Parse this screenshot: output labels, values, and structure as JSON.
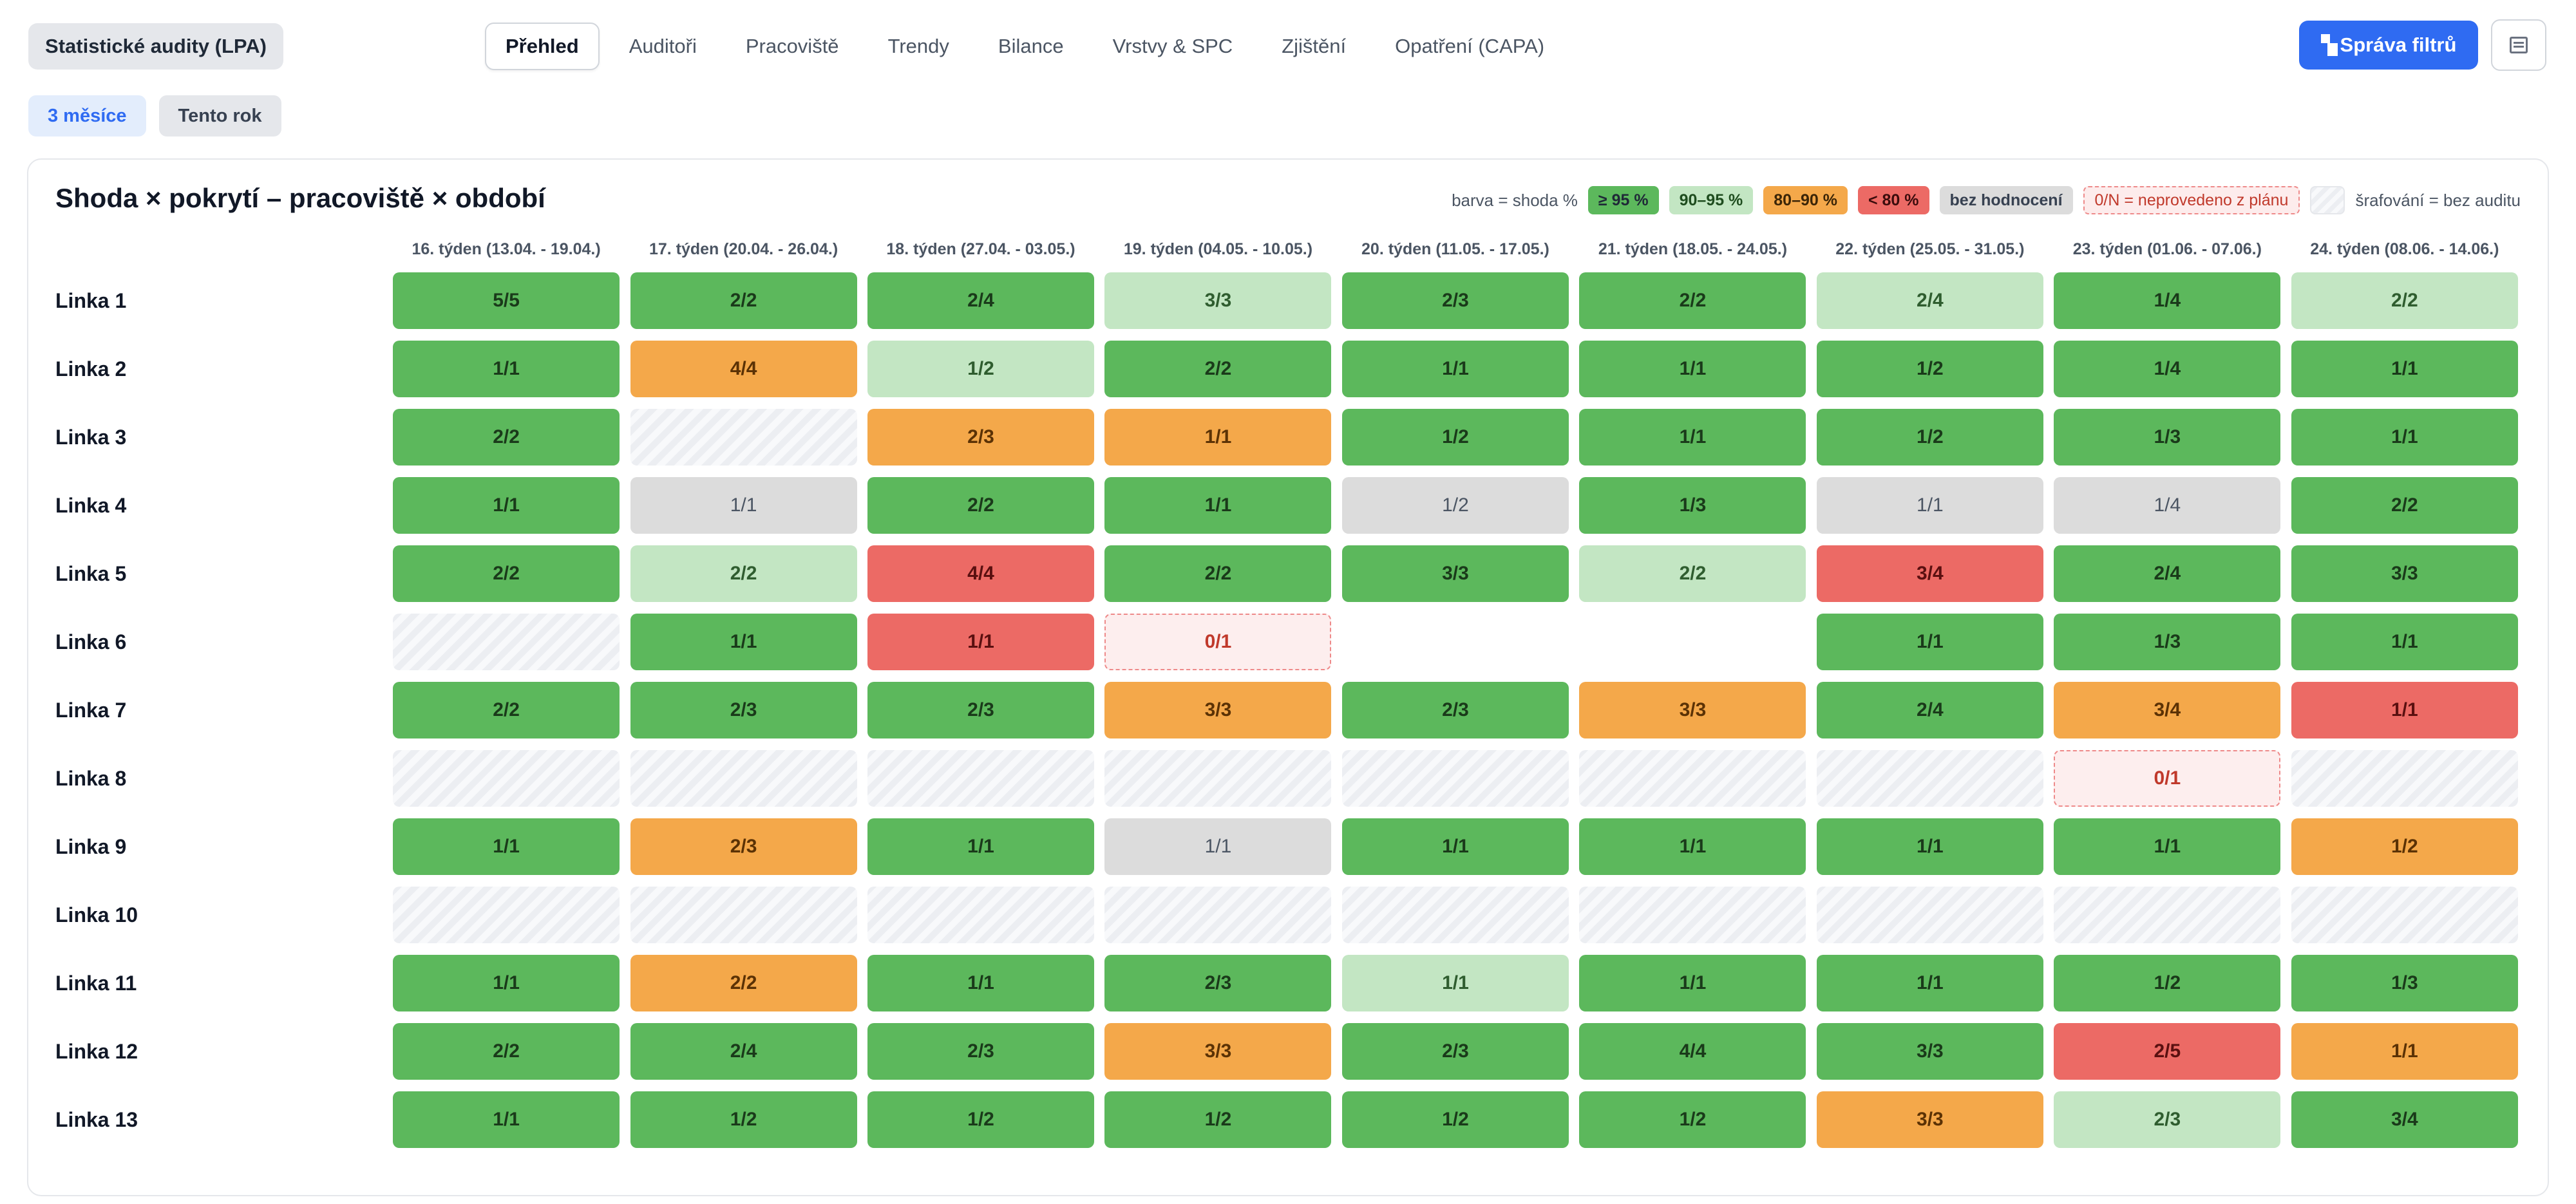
{
  "app": {
    "title": "Statistické audity (LPA)"
  },
  "tabs": [
    {
      "label": "Přehled",
      "active": true
    },
    {
      "label": "Auditoři",
      "active": false
    },
    {
      "label": "Pracoviště",
      "active": false
    },
    {
      "label": "Trendy",
      "active": false
    },
    {
      "label": "Bilance",
      "active": false
    },
    {
      "label": "Vrstvy & SPC",
      "active": false
    },
    {
      "label": "Zjištění",
      "active": false
    },
    {
      "label": "Opatření (CAPA)",
      "active": false
    }
  ],
  "toolbar": {
    "filters_label": "Správa filtrů",
    "filters_icon": "filter-icon",
    "panel_icon": "panel-icon"
  },
  "period": [
    {
      "label": "3 měsíce",
      "active": true
    },
    {
      "label": "Tento rok",
      "active": false
    }
  ],
  "colors": {
    "ge95": "#5cb85c",
    "r90_95": "#c3e6c3",
    "r80_90": "#f4a84a",
    "lt80": "#ec6a65",
    "none": "#dcdcdc",
    "not_done": "#fdeeee",
    "accent": "#2f6bf2"
  },
  "card": {
    "title": "Shoda × pokrytí – pracoviště × období",
    "legend": {
      "prefix": "barva = shoda %",
      "ge95": "≥ 95 %",
      "r90_95": "90–95 %",
      "r80_90": "80–90 %",
      "lt80": "< 80 %",
      "none": "bez hodnocení",
      "not_done": "0/N = neprovedeno z plánu",
      "hatch": "šrafování = bez auditu"
    }
  },
  "chart_data": {
    "type": "heatmap",
    "columns": [
      "16. týden (13.04. - 19.04.)",
      "17. týden (20.04. - 26.04.)",
      "18. týden (27.04. - 03.05.)",
      "19. týden (04.05. - 10.05.)",
      "20. týden (11.05. - 17.05.)",
      "21. týden (18.05. - 24.05.)",
      "22. týden (25.05. - 31.05.)",
      "23. týden (01.06. - 07.06.)",
      "24. týden (08.06. - 14.06.)"
    ],
    "rows": [
      {
        "label": "Linka 1",
        "cells": [
          {
            "v": "5/5",
            "c": "c95"
          },
          {
            "v": "2/2",
            "c": "c95"
          },
          {
            "v": "2/4",
            "c": "c95"
          },
          {
            "v": "3/3",
            "c": "c90"
          },
          {
            "v": "2/3",
            "c": "c95"
          },
          {
            "v": "2/2",
            "c": "c95"
          },
          {
            "v": "2/4",
            "c": "c90"
          },
          {
            "v": "1/4",
            "c": "c95"
          },
          {
            "v": "2/2",
            "c": "c90"
          }
        ]
      },
      {
        "label": "Linka 2",
        "cells": [
          {
            "v": "1/1",
            "c": "c95"
          },
          {
            "v": "4/4",
            "c": "c80"
          },
          {
            "v": "1/2",
            "c": "c90"
          },
          {
            "v": "2/2",
            "c": "c95"
          },
          {
            "v": "1/1",
            "c": "c95"
          },
          {
            "v": "1/1",
            "c": "c95"
          },
          {
            "v": "1/2",
            "c": "c95"
          },
          {
            "v": "1/4",
            "c": "c95"
          },
          {
            "v": "1/1",
            "c": "c95"
          }
        ]
      },
      {
        "label": "Linka 3",
        "cells": [
          {
            "v": "2/2",
            "c": "c95"
          },
          {
            "v": "",
            "c": "hatch"
          },
          {
            "v": "2/3",
            "c": "c80"
          },
          {
            "v": "1/1",
            "c": "c80"
          },
          {
            "v": "1/2",
            "c": "c95"
          },
          {
            "v": "1/1",
            "c": "c95"
          },
          {
            "v": "1/2",
            "c": "c95"
          },
          {
            "v": "1/3",
            "c": "c95"
          },
          {
            "v": "1/1",
            "c": "c95"
          }
        ]
      },
      {
        "label": "Linka 4",
        "cells": [
          {
            "v": "1/1",
            "c": "c95"
          },
          {
            "v": "1/1",
            "c": "cnone"
          },
          {
            "v": "2/2",
            "c": "c95"
          },
          {
            "v": "1/1",
            "c": "c95"
          },
          {
            "v": "1/2",
            "c": "cnone"
          },
          {
            "v": "1/3",
            "c": "c95"
          },
          {
            "v": "1/1",
            "c": "cnone"
          },
          {
            "v": "1/4",
            "c": "cnone"
          },
          {
            "v": "2/2",
            "c": "c95"
          }
        ]
      },
      {
        "label": "Linka 5",
        "cells": [
          {
            "v": "2/2",
            "c": "c95"
          },
          {
            "v": "2/2",
            "c": "c90"
          },
          {
            "v": "4/4",
            "c": "clow"
          },
          {
            "v": "2/2",
            "c": "c95"
          },
          {
            "v": "3/3",
            "c": "c95"
          },
          {
            "v": "2/2",
            "c": "c90"
          },
          {
            "v": "3/4",
            "c": "clow"
          },
          {
            "v": "2/4",
            "c": "c95"
          },
          {
            "v": "3/3",
            "c": "c95"
          }
        ]
      },
      {
        "label": "Linka 6",
        "cells": [
          {
            "v": "",
            "c": "hatch"
          },
          {
            "v": "1/1",
            "c": "c95"
          },
          {
            "v": "1/1",
            "c": "clow"
          },
          {
            "v": "0/1",
            "c": "cnot"
          },
          {
            "v": "",
            "c": "empty"
          },
          {
            "v": "",
            "c": "empty"
          },
          {
            "v": "1/1",
            "c": "c95"
          },
          {
            "v": "1/3",
            "c": "c95"
          },
          {
            "v": "1/1",
            "c": "c95"
          }
        ]
      },
      {
        "label": "Linka 7",
        "cells": [
          {
            "v": "2/2",
            "c": "c95"
          },
          {
            "v": "2/3",
            "c": "c95"
          },
          {
            "v": "2/3",
            "c": "c95"
          },
          {
            "v": "3/3",
            "c": "c80"
          },
          {
            "v": "2/3",
            "c": "c95"
          },
          {
            "v": "3/3",
            "c": "c80"
          },
          {
            "v": "2/4",
            "c": "c95"
          },
          {
            "v": "3/4",
            "c": "c80"
          },
          {
            "v": "1/1",
            "c": "clow"
          }
        ]
      },
      {
        "label": "Linka 8",
        "cells": [
          {
            "v": "",
            "c": "hatch"
          },
          {
            "v": "",
            "c": "hatch"
          },
          {
            "v": "",
            "c": "hatch"
          },
          {
            "v": "",
            "c": "hatch"
          },
          {
            "v": "",
            "c": "hatch"
          },
          {
            "v": "",
            "c": "hatch"
          },
          {
            "v": "",
            "c": "hatch"
          },
          {
            "v": "0/1",
            "c": "cnot"
          },
          {
            "v": "",
            "c": "hatch"
          }
        ]
      },
      {
        "label": "Linka 9",
        "cells": [
          {
            "v": "1/1",
            "c": "c95"
          },
          {
            "v": "2/3",
            "c": "c80"
          },
          {
            "v": "1/1",
            "c": "c95"
          },
          {
            "v": "1/1",
            "c": "cnone"
          },
          {
            "v": "1/1",
            "c": "c95"
          },
          {
            "v": "1/1",
            "c": "c95"
          },
          {
            "v": "1/1",
            "c": "c95"
          },
          {
            "v": "1/1",
            "c": "c95"
          },
          {
            "v": "1/2",
            "c": "c80"
          }
        ]
      },
      {
        "label": "Linka 10",
        "cells": [
          {
            "v": "",
            "c": "hatch"
          },
          {
            "v": "",
            "c": "hatch"
          },
          {
            "v": "",
            "c": "hatch"
          },
          {
            "v": "",
            "c": "hatch"
          },
          {
            "v": "",
            "c": "hatch"
          },
          {
            "v": "",
            "c": "hatch"
          },
          {
            "v": "",
            "c": "hatch"
          },
          {
            "v": "",
            "c": "hatch"
          },
          {
            "v": "",
            "c": "hatch"
          }
        ]
      },
      {
        "label": "Linka 11",
        "cells": [
          {
            "v": "1/1",
            "c": "c95"
          },
          {
            "v": "2/2",
            "c": "c80"
          },
          {
            "v": "1/1",
            "c": "c95"
          },
          {
            "v": "2/3",
            "c": "c95"
          },
          {
            "v": "1/1",
            "c": "c90"
          },
          {
            "v": "1/1",
            "c": "c95"
          },
          {
            "v": "1/1",
            "c": "c95"
          },
          {
            "v": "1/2",
            "c": "c95"
          },
          {
            "v": "1/3",
            "c": "c95"
          }
        ]
      },
      {
        "label": "Linka 12",
        "cells": [
          {
            "v": "2/2",
            "c": "c95"
          },
          {
            "v": "2/4",
            "c": "c95"
          },
          {
            "v": "2/3",
            "c": "c95"
          },
          {
            "v": "3/3",
            "c": "c80"
          },
          {
            "v": "2/3",
            "c": "c95"
          },
          {
            "v": "4/4",
            "c": "c95"
          },
          {
            "v": "3/3",
            "c": "c95"
          },
          {
            "v": "2/5",
            "c": "clow"
          },
          {
            "v": "1/1",
            "c": "c80"
          }
        ]
      },
      {
        "label": "Linka 13",
        "cells": [
          {
            "v": "1/1",
            "c": "c95"
          },
          {
            "v": "1/2",
            "c": "c95"
          },
          {
            "v": "1/2",
            "c": "c95"
          },
          {
            "v": "1/2",
            "c": "c95"
          },
          {
            "v": "1/2",
            "c": "c95"
          },
          {
            "v": "1/2",
            "c": "c95"
          },
          {
            "v": "3/3",
            "c": "c80"
          },
          {
            "v": "2/3",
            "c": "c90"
          },
          {
            "v": "3/4",
            "c": "c95"
          }
        ]
      }
    ]
  }
}
